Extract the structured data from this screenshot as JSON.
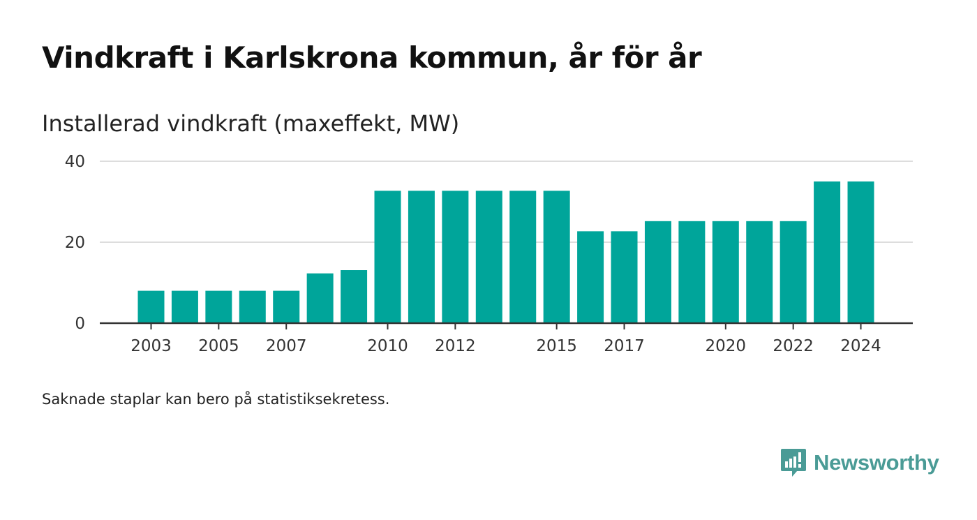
{
  "title": "Vindkraft i Karlskrona kommun, år för år",
  "subtitle": "Installerad vindkraft (maxeffekt, MW)",
  "footnote": "Saknade staplar kan bero på statistiksekretess.",
  "brand": {
    "name": "Newsworthy",
    "logo_icon": "newsworthy-logo-icon"
  },
  "colors": {
    "bar": "#00a59a",
    "gridline": "#dddddd",
    "axis": "#333333",
    "brand": "#4a9b96"
  },
  "chart_data": {
    "type": "bar",
    "categories": [
      "2003",
      "2004",
      "2005",
      "2006",
      "2007",
      "2008",
      "2009",
      "2010",
      "2011",
      "2012",
      "2013",
      "2014",
      "2015",
      "2016",
      "2017",
      "2018",
      "2019",
      "2020",
      "2021",
      "2022",
      "2023",
      "2024"
    ],
    "values": [
      8,
      8,
      8,
      8,
      8,
      12.3,
      13.1,
      32.7,
      32.7,
      32.7,
      32.7,
      32.7,
      32.7,
      22.7,
      22.7,
      25.2,
      25.2,
      25.2,
      25.2,
      25.2,
      35,
      35
    ],
    "x_tick_labels": [
      "2003",
      "2005",
      "2007",
      "2010",
      "2012",
      "2015",
      "2017",
      "2020",
      "2022",
      "2024"
    ],
    "y_ticks": [
      0,
      20,
      40
    ],
    "ylim": [
      0,
      40
    ],
    "ylabel": "Installerad vindkraft (maxeffekt, MW)",
    "xlabel": "",
    "grid": true
  }
}
